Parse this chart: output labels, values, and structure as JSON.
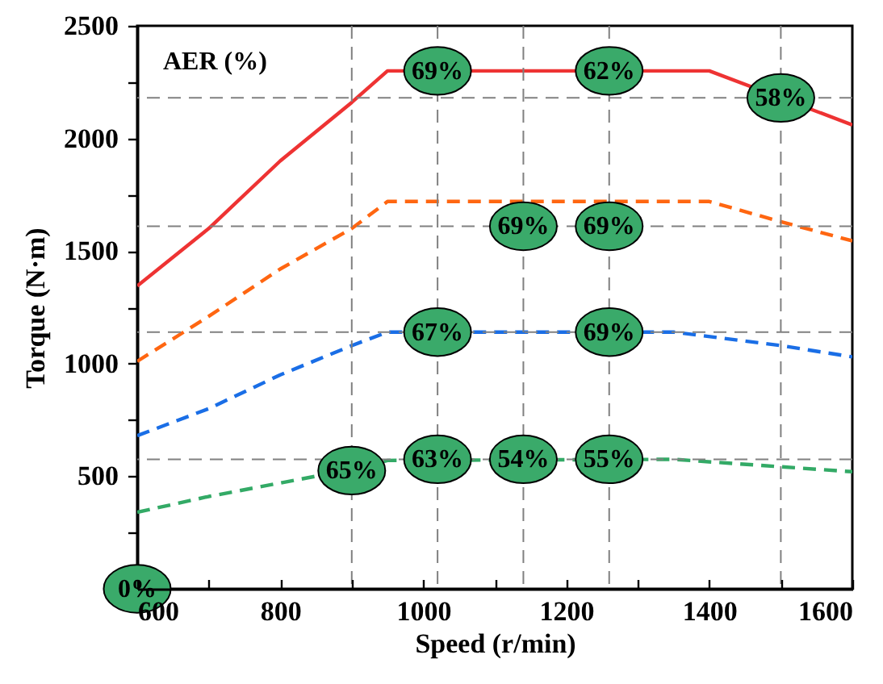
{
  "chart_data": {
    "type": "line",
    "xlabel": "Speed (r/min)",
    "ylabel": "Torque (N·m)",
    "xlim": [
      600,
      1600
    ],
    "ylim": [
      0,
      2500
    ],
    "xticks": [
      600,
      {
        "value": 700,
        "label": null
      },
      800,
      {
        "value": 900,
        "label": null
      },
      1000,
      {
        "value": 1100,
        "label": null
      },
      1200,
      {
        "value": 1300,
        "label": null
      },
      1400,
      {
        "value": 1500,
        "label": null
      },
      1600
    ],
    "yticks": [
      {
        "value": 0,
        "label": null
      },
      {
        "value": 250,
        "label": null
      },
      500,
      {
        "value": 750,
        "label": null
      },
      1000,
      {
        "value": 1250,
        "label": null
      },
      1500,
      {
        "value": 1750,
        "label": null
      },
      2000,
      {
        "value": 2250,
        "label": null
      },
      2500
    ],
    "grid": false,
    "series": [
      {
        "color": "#ee3333",
        "line_style": "solid",
        "x": [
          600,
          700,
          800,
          900,
          950,
          1400,
          1600
        ],
        "values": [
          1345,
          1600,
          1900,
          2160,
          2300,
          2300,
          2060
        ]
      },
      {
        "color": "#ff6611",
        "line_style": "dashed",
        "x": [
          600,
          700,
          800,
          900,
          950,
          1400,
          1500,
          1600
        ],
        "values": [
          1010,
          1210,
          1420,
          1600,
          1720,
          1720,
          1630,
          1545
        ]
      },
      {
        "color": "#1a6ee6",
        "line_style": "dashed",
        "x": [
          600,
          700,
          800,
          900,
          950,
          1350,
          1500,
          1600
        ],
        "values": [
          680,
          800,
          950,
          1080,
          1140,
          1140,
          1080,
          1030
        ]
      },
      {
        "color": "#33aa66",
        "line_style": "dashed",
        "x": [
          600,
          700,
          800,
          900,
          950,
          1350,
          1600
        ],
        "values": [
          340,
          410,
          470,
          530,
          570,
          575,
          520
        ]
      }
    ],
    "ref_lines": [
      {
        "axis": "y",
        "value": 2180,
        "color": "#808080",
        "line_style": "dashed"
      },
      {
        "axis": "y",
        "value": 1610,
        "color": "#808080",
        "line_style": "dashed"
      },
      {
        "axis": "y",
        "value": 1140,
        "color": "#808080",
        "line_style": "dashed"
      },
      {
        "axis": "y",
        "value": 575,
        "color": "#808080",
        "line_style": "dashed"
      },
      {
        "axis": "x",
        "value": 900,
        "color": "#808080",
        "line_style": "dashed"
      },
      {
        "axis": "x",
        "value": 1020,
        "color": "#808080",
        "line_style": "dashed"
      },
      {
        "axis": "x",
        "value": 1140,
        "color": "#808080",
        "line_style": "dashed"
      },
      {
        "axis": "x",
        "value": 1260,
        "color": "#808080",
        "line_style": "dashed"
      },
      {
        "axis": "x",
        "value": 1500,
        "color": "#808080",
        "line_style": "dashed"
      }
    ],
    "annotations": [
      "AER (%)",
      {
        "text": "69%",
        "x": 1020,
        "y": 2300
      },
      {
        "text": "62%",
        "x": 1260,
        "y": 2300
      },
      {
        "text": "58%",
        "x": 1500,
        "y": 2180
      },
      {
        "text": "69%",
        "x": 1140,
        "y": 1610
      },
      {
        "text": "69%",
        "x": 1260,
        "y": 1610
      },
      {
        "text": "67%",
        "x": 1020,
        "y": 1140
      },
      {
        "text": "69%",
        "x": 1260,
        "y": 1140
      },
      {
        "text": "65%",
        "x": 900,
        "y": 525
      },
      {
        "text": "63%",
        "x": 1020,
        "y": 575
      },
      {
        "text": "54%",
        "x": 1140,
        "y": 575
      },
      {
        "text": "55%",
        "x": 1260,
        "y": 575
      },
      {
        "text": "0%",
        "x": 600,
        "y": 0
      }
    ]
  }
}
